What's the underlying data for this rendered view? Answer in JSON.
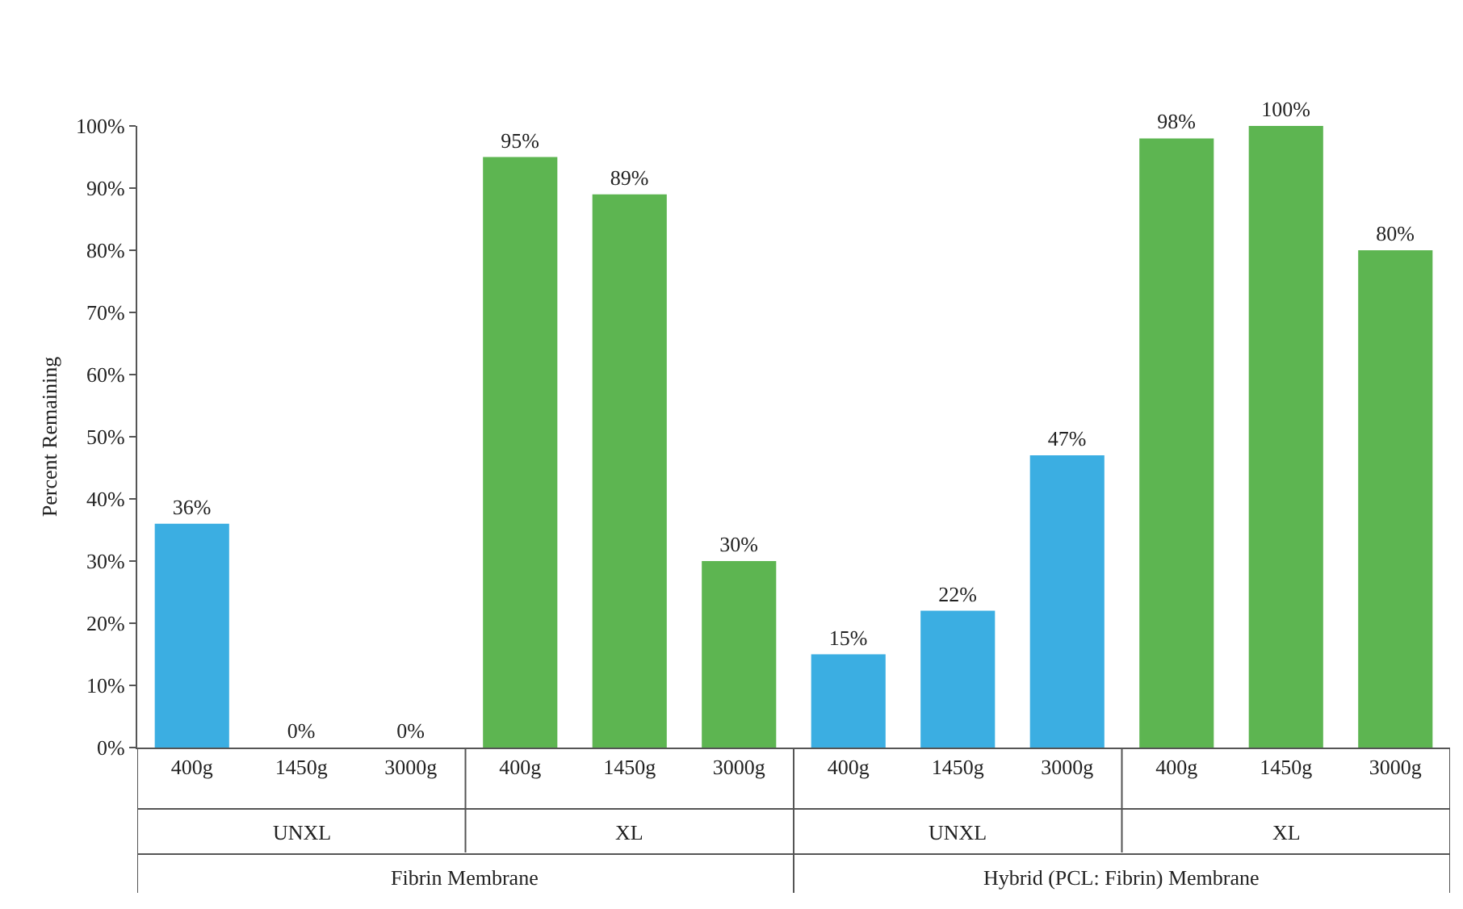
{
  "chart_data": {
    "type": "bar",
    "ylabel": "Percent Remaining",
    "categories": [
      "400g",
      "1450g",
      "3000g",
      "400g",
      "1450g",
      "3000g",
      "400g",
      "1450g",
      "3000g",
      "400g",
      "1450g",
      "3000g"
    ],
    "values": [
      36,
      0,
      0,
      95,
      89,
      30,
      15,
      22,
      47,
      98,
      100,
      80
    ],
    "value_labels": [
      "36%",
      "0%",
      "0%",
      "95%",
      "89%",
      "30%",
      "15%",
      "22%",
      "47%",
      "98%",
      "100%",
      "80%"
    ],
    "colors": [
      "#3baee2",
      "#3baee2",
      "#3baee2",
      "#5db551",
      "#5db551",
      "#5db551",
      "#3baee2",
      "#3baee2",
      "#3baee2",
      "#5db551",
      "#5db551",
      "#5db551"
    ],
    "ylim": [
      0,
      100
    ],
    "yticks": [
      {
        "value": 0,
        "label": "0%"
      },
      {
        "value": 10,
        "label": "10%"
      },
      {
        "value": 20,
        "label": "20%"
      },
      {
        "value": 30,
        "label": "30%"
      },
      {
        "value": 40,
        "label": "40%"
      },
      {
        "value": 50,
        "label": "50%"
      },
      {
        "value": 60,
        "label": "60%"
      },
      {
        "value": 70,
        "label": "70%"
      },
      {
        "value": 80,
        "label": "80%"
      },
      {
        "value": 90,
        "label": "90%"
      },
      {
        "value": 100,
        "label": "100%"
      }
    ],
    "annotations": [
      "UNXL",
      "XL",
      "UNXL",
      "XL",
      "Fibrin Membrane",
      "Hybrid (PCL: Fibrin) Membrane"
    ]
  }
}
